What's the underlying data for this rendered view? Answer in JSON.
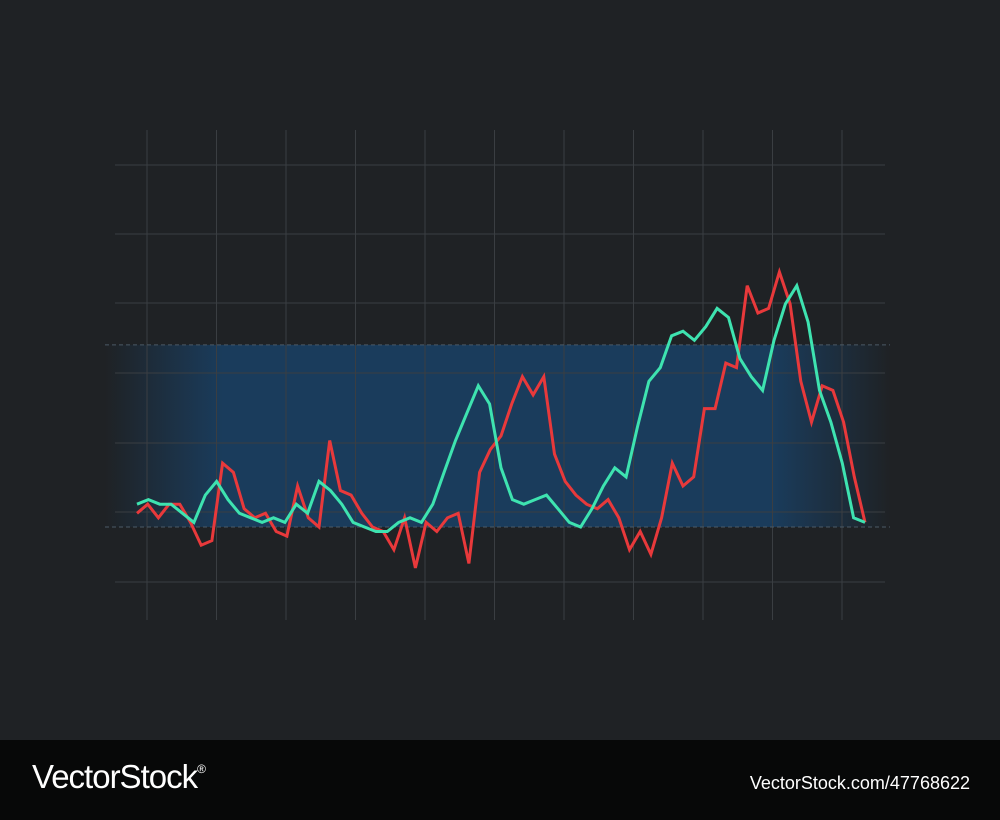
{
  "chart_data": {
    "type": "line",
    "title": "",
    "xlabel": "",
    "ylabel": "",
    "grid": true,
    "legend": "none",
    "xlim": [
      0,
      74
    ],
    "ylim": [
      -2,
      8.5
    ],
    "band": {
      "y_from": 0,
      "y_to": 4,
      "color": "#1a3c5c"
    },
    "series": [
      {
        "color": "#e8393b",
        "values": [
          0.3,
          0.5,
          0.2,
          0.5,
          0.5,
          0.1,
          -0.4,
          -0.3,
          1.4,
          1.2,
          0.4,
          0.2,
          0.3,
          -0.1,
          -0.2,
          0.9,
          0.2,
          0.0,
          1.9,
          0.8,
          0.7,
          0.3,
          0.0,
          -0.1,
          -0.5,
          0.2,
          -0.9,
          0.1,
          -0.1,
          0.2,
          0.3,
          -0.8,
          1.2,
          1.7,
          2.0,
          2.7,
          3.3,
          2.9,
          3.3,
          1.6,
          1.0,
          0.7,
          0.5,
          0.4,
          0.6,
          0.2,
          -0.5,
          -0.1,
          -0.6,
          0.2,
          1.4,
          0.9,
          1.1,
          2.6,
          2.6,
          3.6,
          3.5,
          5.3,
          4.7,
          4.8,
          5.6,
          4.9,
          3.2,
          2.3,
          3.1,
          3.0,
          2.3,
          1.1,
          0.1
        ]
      },
      {
        "color": "#3ee3b0",
        "values": [
          0.5,
          0.6,
          0.5,
          0.5,
          0.3,
          0.1,
          0.7,
          1.0,
          0.6,
          0.3,
          0.2,
          0.1,
          0.2,
          0.1,
          0.5,
          0.3,
          1.0,
          0.8,
          0.5,
          0.1,
          0.0,
          -0.1,
          -0.1,
          0.1,
          0.2,
          0.1,
          0.5,
          1.2,
          1.9,
          2.5,
          3.1,
          2.7,
          1.3,
          0.6,
          0.5,
          0.6,
          0.7,
          0.4,
          0.1,
          0.0,
          0.4,
          0.9,
          1.3,
          1.1,
          2.2,
          3.2,
          3.5,
          4.2,
          4.3,
          4.1,
          4.4,
          4.8,
          4.6,
          3.7,
          3.3,
          3.0,
          4.1,
          4.9,
          5.3,
          4.5,
          3.0,
          2.3,
          1.4,
          0.2,
          0.1
        ]
      }
    ]
  },
  "footer": {
    "logo_text": "VectorStock",
    "logo_mark": "®",
    "image_id": "VectorStock.com/47768622"
  }
}
